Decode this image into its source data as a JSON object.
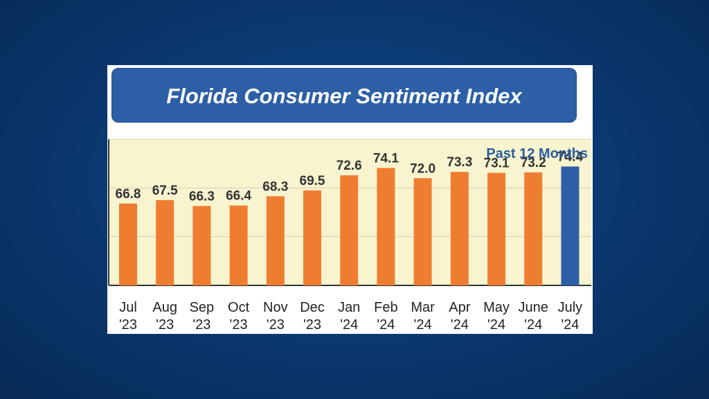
{
  "colors": {
    "bar": "#ef7d31",
    "highlight_bar": "#2c5fa5",
    "plot_background": "#f8f4cf",
    "title_background": "#2c5fa5"
  },
  "chart_data": {
    "type": "bar",
    "title": "Florida Consumer Sentiment Index",
    "subtitle": "Past 12 Months",
    "categories": [
      "Jul '23",
      "Aug '23",
      "Sep '23",
      "Oct '23",
      "Nov '23",
      "Dec '23",
      "Jan '24",
      "Feb '24",
      "Mar '24",
      "Apr '24",
      "May '24",
      "June '24",
      "July '24"
    ],
    "tick_labels": [
      [
        "Jul",
        "'23"
      ],
      [
        "Aug",
        "'23"
      ],
      [
        "Sep",
        "'23"
      ],
      [
        "Oct",
        "'23"
      ],
      [
        "Nov",
        "'23"
      ],
      [
        "Dec",
        "'23"
      ],
      [
        "Jan",
        "'24"
      ],
      [
        "Feb",
        "'24"
      ],
      [
        "Mar",
        "'24"
      ],
      [
        "Apr",
        "'24"
      ],
      [
        "May",
        "'24"
      ],
      [
        "June",
        "'24"
      ],
      [
        "July",
        "'24"
      ]
    ],
    "values": [
      66.8,
      67.5,
      66.3,
      66.4,
      68.3,
      69.5,
      72.6,
      74.1,
      72.0,
      73.3,
      73.1,
      73.2,
      74.4
    ],
    "data_labels": [
      "66.8",
      "67.5",
      "66.3",
      "66.4",
      "68.3",
      "69.5",
      "72.6",
      "74.1",
      "72.0",
      "73.3",
      "73.1",
      "73.2",
      "74.4"
    ],
    "highlight_index": 12,
    "ylim": [
      50,
      80
    ],
    "grid": true,
    "xlabel": "",
    "ylabel": ""
  }
}
